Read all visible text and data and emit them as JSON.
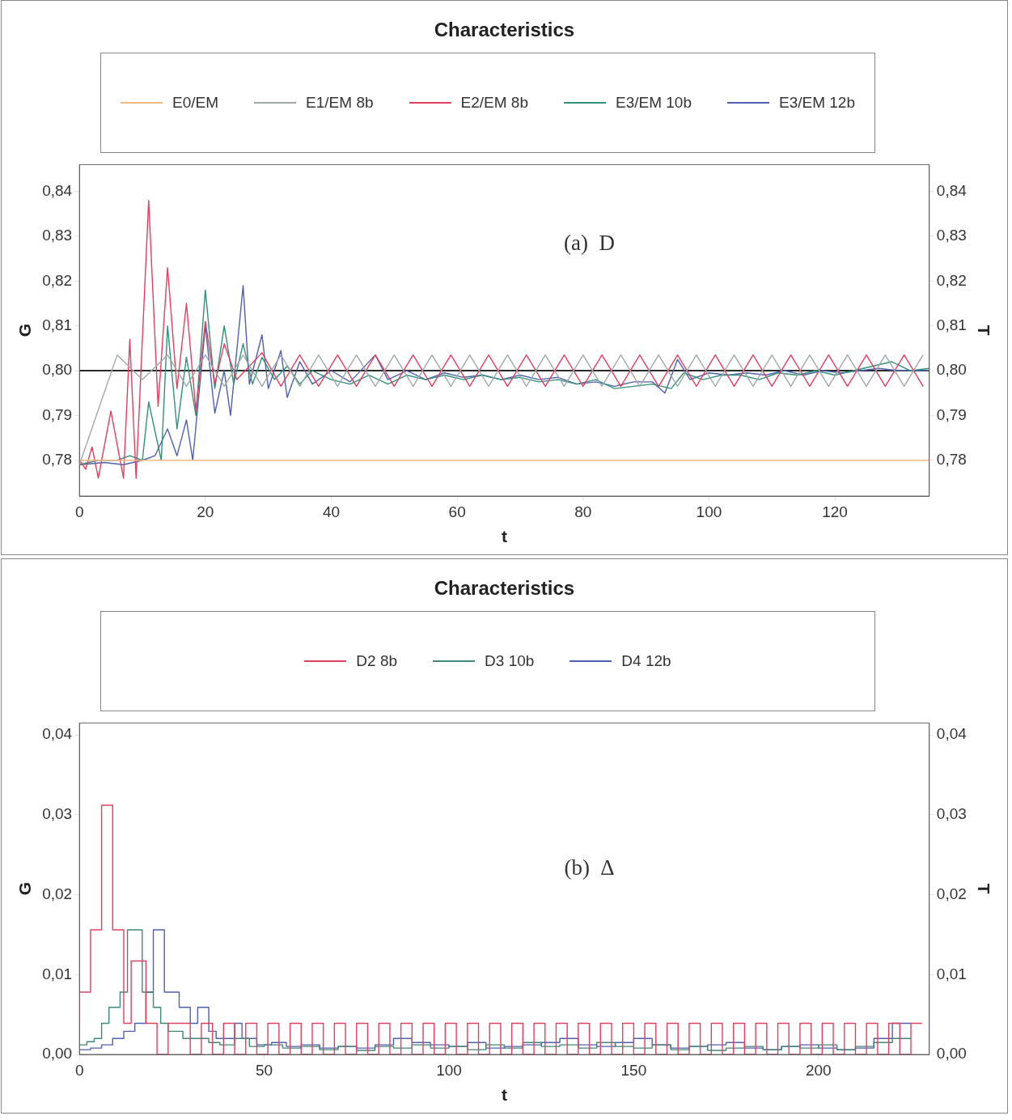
{
  "chart_data": [
    {
      "type": "line",
      "title": "Characteristics",
      "xlabel": "t",
      "ylabel": "G",
      "y2label": "T",
      "legend": "top",
      "marker": "none",
      "grid": false,
      "xlim": [
        0,
        135
      ],
      "xticks": [
        0,
        20,
        40,
        60,
        80,
        100,
        120
      ],
      "ylim": [
        0.772,
        0.846
      ],
      "yticks": [
        {
          "value": 0.78,
          "label": "0,78"
        },
        {
          "value": 0.79,
          "label": "0,79"
        },
        {
          "value": 0.8,
          "label": "0,80"
        },
        {
          "value": 0.81,
          "label": "0,81"
        },
        {
          "value": 0.82,
          "label": "0,82"
        },
        {
          "value": 0.83,
          "label": "0,83"
        },
        {
          "value": 0.84,
          "label": "0,84"
        }
      ],
      "y2lim": [
        0.772,
        0.846
      ],
      "y2ticks": [
        {
          "value": 0.78,
          "label": "0,78"
        },
        {
          "value": 0.79,
          "label": "0,79"
        },
        {
          "value": 0.8,
          "label": "0,80"
        },
        {
          "value": 0.81,
          "label": "0,81"
        },
        {
          "value": 0.82,
          "label": "0,82"
        },
        {
          "value": 0.83,
          "label": "0,83"
        },
        {
          "value": 0.84,
          "label": "0,84"
        }
      ],
      "ref_lines": [
        {
          "axis": "y",
          "value": 0.8,
          "color": "#2a2a2a"
        }
      ],
      "annotations": [
        "(a)  D"
      ],
      "series": [
        {
          "name": "E0/EM",
          "color": "#f0b880",
          "x": [
            0,
            135
          ],
          "values": [
            0.78,
            0.78
          ]
        },
        {
          "name": "E1/EM 8b",
          "color": "#a0a8a8",
          "x": [
            0,
            6,
            10,
            14,
            17,
            20,
            23,
            26,
            29,
            32,
            35,
            38,
            41,
            44,
            47,
            50,
            53,
            56,
            59,
            62,
            65,
            68,
            71,
            74,
            77,
            80,
            83,
            86,
            89,
            92,
            95,
            98,
            101,
            104,
            107,
            110,
            113,
            116,
            119,
            122,
            125,
            128,
            131,
            134
          ],
          "values": [
            0.779,
            0.8035,
            0.798,
            0.8035,
            0.7965,
            0.8035,
            0.7965,
            0.8035,
            0.7965,
            0.8035,
            0.7965,
            0.8035,
            0.7965,
            0.8035,
            0.7965,
            0.8035,
            0.7965,
            0.8035,
            0.7965,
            0.8035,
            0.7965,
            0.8035,
            0.7965,
            0.8035,
            0.7965,
            0.8035,
            0.7965,
            0.8035,
            0.7965,
            0.8035,
            0.7965,
            0.8035,
            0.7965,
            0.8035,
            0.7965,
            0.8035,
            0.7965,
            0.8035,
            0.7965,
            0.8035,
            0.7965,
            0.8035,
            0.7965,
            0.8035
          ]
        },
        {
          "name": "E2/EM 8b",
          "color": "#e04060",
          "x": [
            0,
            1,
            2,
            3,
            5,
            7,
            8,
            9,
            11,
            12.5,
            14,
            15.5,
            17,
            18.5,
            20,
            21.5,
            23,
            25,
            29,
            32,
            35,
            38,
            41,
            44,
            47,
            50,
            53,
            56,
            59,
            62,
            65,
            68,
            71,
            74,
            77,
            80,
            83,
            86,
            89,
            92,
            95,
            98,
            101,
            104,
            107,
            110,
            113,
            116,
            119,
            122,
            125,
            128,
            131,
            134
          ],
          "values": [
            0.78,
            0.778,
            0.783,
            0.776,
            0.791,
            0.776,
            0.807,
            0.776,
            0.838,
            0.792,
            0.823,
            0.796,
            0.815,
            0.791,
            0.811,
            0.797,
            0.806,
            0.798,
            0.804,
            0.7965,
            0.8035,
            0.7965,
            0.8035,
            0.7965,
            0.8035,
            0.7965,
            0.8035,
            0.7965,
            0.8035,
            0.7965,
            0.8035,
            0.7965,
            0.8035,
            0.7965,
            0.8035,
            0.7965,
            0.8035,
            0.7965,
            0.8035,
            0.7965,
            0.8035,
            0.7965,
            0.8035,
            0.7965,
            0.8035,
            0.7965,
            0.8035,
            0.7965,
            0.8035,
            0.7965,
            0.8035,
            0.7965,
            0.8035,
            0.7965
          ]
        },
        {
          "name": "E3/EM 10b",
          "color": "#30907a",
          "x": [
            0,
            3,
            6,
            8,
            10,
            11,
            13,
            14,
            15.5,
            17,
            18.5,
            20,
            21.5,
            23,
            24.5,
            26,
            27.5,
            29,
            31,
            33,
            35,
            37,
            40,
            43,
            46,
            49,
            52,
            55,
            58,
            61,
            64,
            67,
            70,
            73,
            76,
            79,
            82,
            85,
            88,
            91,
            94,
            96,
            99,
            102,
            105,
            108,
            111,
            114,
            117,
            120,
            123,
            126,
            129,
            132,
            135
          ],
          "values": [
            0.779,
            0.78,
            0.78,
            0.781,
            0.78,
            0.793,
            0.78,
            0.81,
            0.787,
            0.803,
            0.79,
            0.818,
            0.796,
            0.81,
            0.797,
            0.806,
            0.797,
            0.803,
            0.798,
            0.801,
            0.797,
            0.8,
            0.798,
            0.797,
            0.799,
            0.797,
            0.799,
            0.798,
            0.799,
            0.798,
            0.799,
            0.798,
            0.7985,
            0.7975,
            0.798,
            0.797,
            0.798,
            0.796,
            0.7965,
            0.797,
            0.796,
            0.7995,
            0.798,
            0.799,
            0.799,
            0.798,
            0.7995,
            0.799,
            0.8,
            0.799,
            0.8,
            0.801,
            0.802,
            0.8,
            0.8005
          ]
        },
        {
          "name": "E3/EM 12b",
          "color": "#5060b0",
          "x": [
            0,
            4,
            7,
            10,
            12,
            14,
            15.5,
            17,
            18,
            20,
            21.5,
            23,
            24,
            26,
            27,
            29,
            30,
            32,
            33,
            35,
            37,
            40,
            43,
            47,
            49,
            52,
            55,
            58,
            61,
            64,
            67,
            70,
            73,
            76,
            79,
            82,
            85,
            88,
            91,
            93,
            95,
            97,
            100,
            103,
            106,
            109,
            112,
            115,
            118,
            121,
            124,
            127,
            130,
            133,
            135
          ],
          "values": [
            0.779,
            0.7795,
            0.779,
            0.78,
            0.781,
            0.787,
            0.781,
            0.789,
            0.78,
            0.81,
            0.7905,
            0.8,
            0.79,
            0.819,
            0.797,
            0.808,
            0.796,
            0.8045,
            0.794,
            0.802,
            0.797,
            0.8,
            0.7975,
            0.8035,
            0.798,
            0.8,
            0.798,
            0.7995,
            0.7985,
            0.799,
            0.798,
            0.799,
            0.798,
            0.7985,
            0.797,
            0.7975,
            0.7965,
            0.7975,
            0.7975,
            0.795,
            0.8025,
            0.798,
            0.7995,
            0.799,
            0.7995,
            0.799,
            0.8,
            0.799,
            0.8,
            0.7995,
            0.8,
            0.8005,
            0.8,
            0.8,
            0.8
          ]
        }
      ]
    },
    {
      "type": "step",
      "title": "Characteristics",
      "xlabel": "t",
      "ylabel": "G",
      "y2label": "T",
      "legend": "top",
      "marker": "none",
      "grid": false,
      "xlim": [
        0,
        230
      ],
      "xticks": [
        0,
        50,
        100,
        150,
        200
      ],
      "ylim": [
        0,
        0.0415
      ],
      "yticks": [
        {
          "value": 0,
          "label": "0,00"
        },
        {
          "value": 0.01,
          "label": "0,01"
        },
        {
          "value": 0.02,
          "label": "0,02"
        },
        {
          "value": 0.03,
          "label": "0,03"
        },
        {
          "value": 0.04,
          "label": "0,04"
        }
      ],
      "y2lim": [
        0,
        0.0415
      ],
      "y2ticks": [
        {
          "value": 0,
          "label": "0,00"
        },
        {
          "value": 0.01,
          "label": "0,01"
        },
        {
          "value": 0.02,
          "label": "0,02"
        },
        {
          "value": 0.03,
          "label": "0,03"
        },
        {
          "value": 0.04,
          "label": "0,04"
        }
      ],
      "annotations": [
        "(b)  Δ"
      ],
      "series": [
        {
          "name": "D2 8b",
          "color": "#e04060",
          "x": [
            0,
            3,
            6,
            9,
            12,
            14,
            18,
            21,
            24,
            30,
            33,
            36,
            39,
            42,
            45,
            48,
            51,
            54,
            57,
            60,
            63,
            66,
            69,
            72,
            75,
            78,
            81,
            84,
            87,
            90,
            93,
            96,
            99,
            102,
            105,
            108,
            111,
            114,
            117,
            120,
            123,
            126,
            129,
            132,
            135,
            138,
            141,
            144,
            147,
            150,
            153,
            156,
            159,
            162,
            165,
            168,
            171,
            174,
            177,
            180,
            183,
            186,
            189,
            192,
            195,
            198,
            201,
            204,
            207,
            210,
            213,
            216,
            219,
            222,
            225,
            228
          ],
          "values": [
            0.0039,
            0.0078,
            0.0156,
            0.0312,
            0.0156,
            0.0039,
            0.0117,
            0.0039,
            0,
            0.0039,
            0,
            0.0039,
            0,
            0.0039,
            0,
            0.0039,
            0,
            0.0039,
            0,
            0.0039,
            0,
            0.0039,
            0,
            0.0039,
            0,
            0.0039,
            0,
            0.0039,
            0,
            0.0039,
            0,
            0.0039,
            0,
            0.0039,
            0,
            0.0039,
            0,
            0.0039,
            0,
            0.0039,
            0,
            0.0039,
            0,
            0.0039,
            0,
            0.0039,
            0,
            0.0039,
            0,
            0.0039,
            0,
            0.0039,
            0,
            0.0039,
            0,
            0.0039,
            0,
            0.0039,
            0,
            0.0039,
            0,
            0.0039,
            0,
            0.0039,
            0,
            0.0039,
            0,
            0.0039,
            0,
            0.0039,
            0,
            0.0039,
            0,
            0.0039,
            0,
            0.0039
          ]
        },
        {
          "name": "D3 10b",
          "color": "#408878",
          "x": [
            0,
            2,
            4,
            6,
            8,
            11,
            13,
            17,
            20,
            22,
            24,
            28,
            31,
            35,
            38,
            42,
            46,
            50,
            55,
            60,
            65,
            70,
            75,
            80,
            85,
            90,
            95,
            100,
            105,
            110,
            115,
            120,
            125,
            130,
            135,
            140,
            145,
            150,
            155,
            160,
            165,
            170,
            175,
            180,
            185,
            190,
            195,
            200,
            205,
            210,
            215,
            220,
            225
          ],
          "values": [
            0.0008,
            0.0012,
            0.0016,
            0.002,
            0.0039,
            0.0059,
            0.0078,
            0.0156,
            0.0078,
            0.0059,
            0.0039,
            0.0029,
            0.002,
            0.002,
            0.0015,
            0.0012,
            0.002,
            0.001,
            0.0012,
            0.0008,
            0.001,
            0.0006,
            0.001,
            0.0005,
            0.001,
            0.0008,
            0.0012,
            0.0008,
            0.001,
            0.0006,
            0.0012,
            0.0008,
            0.0015,
            0.001,
            0.0012,
            0.0008,
            0.0015,
            0.001,
            0.0008,
            0.0012,
            0.0006,
            0.001,
            0.0005,
            0.0008,
            0.001,
            0.0006,
            0.001,
            0.0008,
            0.0012,
            0.0006,
            0.001,
            0.0015,
            0.002
          ]
        },
        {
          "name": "D4 12b",
          "color": "#5060b0",
          "x": [
            0,
            3,
            6,
            9,
            12,
            15,
            18,
            20,
            23,
            27,
            30,
            32,
            35,
            37,
            42,
            44,
            48,
            52,
            56,
            60,
            65,
            70,
            75,
            80,
            85,
            90,
            95,
            100,
            105,
            110,
            115,
            120,
            125,
            130,
            135,
            140,
            145,
            150,
            155,
            160,
            165,
            170,
            175,
            180,
            185,
            190,
            195,
            200,
            205,
            210,
            215,
            220,
            225
          ],
          "values": [
            0.0004,
            0.0006,
            0.0008,
            0.0012,
            0.002,
            0.0029,
            0.0039,
            0.0078,
            0.0156,
            0.0078,
            0.0059,
            0.0039,
            0.0059,
            0.0029,
            0.002,
            0.0039,
            0.002,
            0.0012,
            0.0015,
            0.001,
            0.0012,
            0.0008,
            0.001,
            0.0008,
            0.0012,
            0.002,
            0.0015,
            0.0012,
            0.001,
            0.0015,
            0.0008,
            0.001,
            0.0012,
            0.0015,
            0.002,
            0.0012,
            0.001,
            0.0015,
            0.002,
            0.0012,
            0.0008,
            0.001,
            0.0012,
            0.0015,
            0.0008,
            0.0006,
            0.001,
            0.0012,
            0.0008,
            0.0006,
            0.0008,
            0.002,
            0.0039
          ]
        }
      ]
    }
  ]
}
